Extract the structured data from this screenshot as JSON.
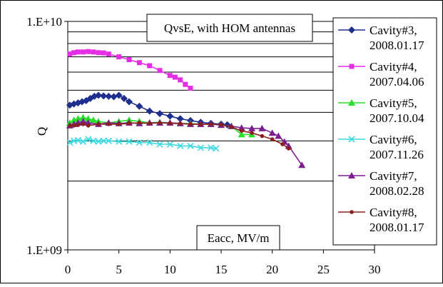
{
  "chart_data": {
    "type": "line",
    "title": "QvsE, with HOM antennas",
    "xlabel": "Eacc, MV/m",
    "ylabel": "Q",
    "x_scale": "linear",
    "y_scale": "log",
    "xlim": [
      0,
      30
    ],
    "ylim": [
      1000000000,
      10000000000
    ],
    "x_ticks": [
      "0",
      "5",
      "10",
      "15",
      "20",
      "25",
      "30"
    ],
    "y_ticks": [
      "1.E+10",
      "1.E+09"
    ],
    "grid": "horizontal",
    "legend_position": "right",
    "series": [
      {
        "name": "Cavity#3, 2008.01.17",
        "color": "#1f2f8f",
        "marker": "diamond",
        "x": [
          0.2,
          0.6,
          1.0,
          1.4,
          1.8,
          2.2,
          2.6,
          3.0,
          3.5,
          4.0,
          4.5,
          5.0,
          5.5,
          6.0,
          7.0,
          8.0,
          9.0,
          10.0,
          11.0,
          12.0,
          13.0,
          14.0,
          15.0,
          15.6
        ],
        "y": [
          4300000000.0,
          4350000000.0,
          4400000000.0,
          4450000000.0,
          4500000000.0,
          4600000000.0,
          4700000000.0,
          4750000000.0,
          4720000000.0,
          4700000000.0,
          4680000000.0,
          4750000000.0,
          4600000000.0,
          4450000000.0,
          4250000000.0,
          4050000000.0,
          3950000000.0,
          3850000000.0,
          3750000000.0,
          3680000000.0,
          3620000000.0,
          3580000000.0,
          3550000000.0,
          3530000000.0
        ]
      },
      {
        "name": "Cavity#4, 2007.04.06",
        "color": "#e62de6",
        "marker": "square",
        "x": [
          0.2,
          0.6,
          1.0,
          1.5,
          2.0,
          2.5,
          3.0,
          3.5,
          4.0,
          5.0,
          6.0,
          7.0,
          8.0,
          9.0,
          10.0,
          10.5,
          11.0,
          11.5,
          12.0
        ],
        "y": [
          7200000000.0,
          7300000000.0,
          7350000000.0,
          7350000000.0,
          7380000000.0,
          7350000000.0,
          7300000000.0,
          7280000000.0,
          7200000000.0,
          7000000000.0,
          6800000000.0,
          6600000000.0,
          6400000000.0,
          6100000000.0,
          5800000000.0,
          5700000000.0,
          5550000000.0,
          5300000000.0,
          5100000000.0
        ]
      },
      {
        "name": "Cavity#5, 2007.10.04",
        "color": "#2adf2a",
        "marker": "triangle",
        "x": [
          0.2,
          0.6,
          1.0,
          1.5,
          2.0,
          2.5,
          3.0,
          4.0,
          5.0,
          6.0,
          7.0,
          8.0,
          9.0,
          10.0,
          11.0,
          12.0,
          13.0,
          14.0,
          15.0,
          16.0,
          17.0,
          18.0
        ],
        "y": [
          3600000000.0,
          3700000000.0,
          3750000000.0,
          3800000000.0,
          3750000000.0,
          3700000000.0,
          3650000000.0,
          3600000000.0,
          3650000000.0,
          3700000000.0,
          3650000000.0,
          3600000000.0,
          3620000000.0,
          3600000000.0,
          3580000000.0,
          3570000000.0,
          3550000000.0,
          3550000000.0,
          3520000000.0,
          3480000000.0,
          3200000000.0,
          3200000000.0
        ]
      },
      {
        "name": "Cavity#6, 2007.11.26",
        "color": "#3ad9e0",
        "marker": "x",
        "x": [
          0.2,
          0.6,
          1.0,
          1.5,
          2.0,
          2.5,
          3.0,
          3.5,
          4.0,
          5.0,
          6.0,
          7.0,
          8.0,
          9.0,
          10.0,
          11.0,
          12.0,
          13.0,
          14.0,
          14.5
        ],
        "y": [
          2950000000.0,
          3000000000.0,
          3020000000.0,
          2980000000.0,
          3050000000.0,
          3000000000.0,
          2980000000.0,
          3000000000.0,
          3000000000.0,
          2980000000.0,
          2980000000.0,
          2950000000.0,
          2950000000.0,
          2900000000.0,
          2900000000.0,
          2850000000.0,
          2850000000.0,
          2800000000.0,
          2800000000.0,
          2780000000.0
        ]
      },
      {
        "name": "Cavity#7, 2008.02.28",
        "color": "#7b1f8f",
        "marker": "triangle",
        "x": [
          0.2,
          0.6,
          1.0,
          1.5,
          2.0,
          3.0,
          4.0,
          5.0,
          6.0,
          7.0,
          8.0,
          9.0,
          10.0,
          11.0,
          12.0,
          13.0,
          14.0,
          15.0,
          16.0,
          17.0,
          18.0,
          19.0,
          20.0,
          20.6,
          21.2,
          21.6,
          22.9
        ],
        "y": [
          3500000000.0,
          3550000000.0,
          3600000000.0,
          3650000000.0,
          3600000000.0,
          3550000000.0,
          3600000000.0,
          3580000000.0,
          3600000000.0,
          3580000000.0,
          3600000000.0,
          3600000000.0,
          3600000000.0,
          3580000000.0,
          3550000000.0,
          3550000000.0,
          3550000000.0,
          3520000000.0,
          3480000000.0,
          3420000000.0,
          3400000000.0,
          3400000000.0,
          3250000000.0,
          3150000000.0,
          2970000000.0,
          2850000000.0,
          2350000000.0
        ]
      },
      {
        "name": "Cavity#8, 2008.01.17",
        "color": "#8b1f1f",
        "marker": "circle",
        "x": [
          0.2,
          0.6,
          1.0,
          1.5,
          2.0,
          3.0,
          4.0,
          5.0,
          6.0,
          7.0,
          8.0,
          9.0,
          10.0,
          11.0,
          12.0,
          13.0,
          14.0,
          15.0,
          16.0,
          17.0,
          18.0,
          19.0,
          20.0,
          21.0,
          21.6
        ],
        "y": [
          3500000000.0,
          3500000000.0,
          3520000000.0,
          3550000000.0,
          3500000000.0,
          3550000000.0,
          3550000000.0,
          3550000000.0,
          3580000000.0,
          3600000000.0,
          3580000000.0,
          3600000000.0,
          3580000000.0,
          3570000000.0,
          3550000000.0,
          3550000000.0,
          3550000000.0,
          3530000000.0,
          3450000000.0,
          3320000000.0,
          3250000000.0,
          3150000000.0,
          3050000000.0,
          2900000000.0,
          2780000000.0
        ]
      }
    ]
  }
}
